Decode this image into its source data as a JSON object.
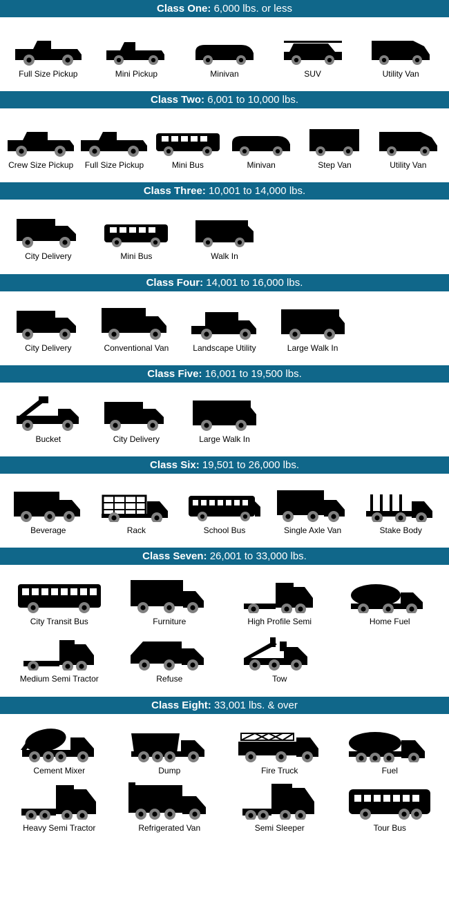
{
  "header_bg": "#10678a",
  "icon_fill": "#000000",
  "wheel_fill": "#808080",
  "label_fontsize": 12,
  "header_fontsize": 15,
  "sections": [
    {
      "title_bold": "Class One:",
      "title_rest": " 6,000 lbs. or less",
      "cols": 5,
      "items": [
        {
          "label": "Full Size Pickup",
          "icon": "pickup-full"
        },
        {
          "label": "Mini Pickup",
          "icon": "pickup-mini"
        },
        {
          "label": "Minivan",
          "icon": "minivan"
        },
        {
          "label": "SUV",
          "icon": "suv"
        },
        {
          "label": "Utility Van",
          "icon": "utility-van"
        }
      ]
    },
    {
      "title_bold": "Class Two:",
      "title_rest": " 6,001 to 10,000 lbs.",
      "cols": 6,
      "items": [
        {
          "label": "Crew Size Pickup",
          "icon": "pickup-crew"
        },
        {
          "label": "Full Size Pickup",
          "icon": "pickup-full"
        },
        {
          "label": "Mini Bus",
          "icon": "mini-bus"
        },
        {
          "label": "Minivan",
          "icon": "minivan"
        },
        {
          "label": "Step Van",
          "icon": "step-van"
        },
        {
          "label": "Utility Van",
          "icon": "utility-van"
        }
      ]
    },
    {
      "title_bold": "Class Three:",
      "title_rest": " 10,001 to 14,000 lbs.",
      "cols": 5,
      "items": [
        {
          "label": "City Delivery",
          "icon": "box-truck"
        },
        {
          "label": "Mini Bus",
          "icon": "mini-bus"
        },
        {
          "label": "Walk In",
          "icon": "walk-in"
        }
      ]
    },
    {
      "title_bold": "Class Four:",
      "title_rest": " 14,001 to 16,000 lbs.",
      "cols": 5,
      "items": [
        {
          "label": "City Delivery",
          "icon": "box-truck"
        },
        {
          "label": "Conventional Van",
          "icon": "box-truck-lg"
        },
        {
          "label": "Landscape Utility",
          "icon": "landscape"
        },
        {
          "label": "Large Walk In",
          "icon": "walk-in-lg"
        }
      ]
    },
    {
      "title_bold": "Class Five:",
      "title_rest": " 16,001 to 19,500 lbs.",
      "cols": 5,
      "items": [
        {
          "label": "Bucket",
          "icon": "bucket"
        },
        {
          "label": "City Delivery",
          "icon": "box-truck"
        },
        {
          "label": "Large Walk In",
          "icon": "walk-in-lg"
        }
      ]
    },
    {
      "title_bold": "Class Six:",
      "title_rest": " 19,501 to 26,000 lbs.",
      "cols": 5,
      "items": [
        {
          "label": "Beverage",
          "icon": "beverage"
        },
        {
          "label": "Rack",
          "icon": "rack"
        },
        {
          "label": "School Bus",
          "icon": "school-bus"
        },
        {
          "label": "Single Axle Van",
          "icon": "single-axle"
        },
        {
          "label": "Stake Body",
          "icon": "stake"
        }
      ]
    },
    {
      "title_bold": "Class Seven:",
      "title_rest": " 26,001 to 33,000 lbs.",
      "cols": 4,
      "items": [
        {
          "label": "City Transit Bus",
          "icon": "transit-bus"
        },
        {
          "label": "Furniture",
          "icon": "furniture"
        },
        {
          "label": "High Profile Semi",
          "icon": "high-semi"
        },
        {
          "label": "Home Fuel",
          "icon": "home-fuel"
        },
        {
          "label": "Medium Semi Tractor",
          "icon": "med-semi"
        },
        {
          "label": "Refuse",
          "icon": "refuse"
        },
        {
          "label": "Tow",
          "icon": "tow"
        }
      ]
    },
    {
      "title_bold": "Class Eight:",
      "title_rest": " 33,001 lbs. & over",
      "cols": 4,
      "items": [
        {
          "label": "Cement Mixer",
          "icon": "cement"
        },
        {
          "label": "Dump",
          "icon": "dump"
        },
        {
          "label": "Fire Truck",
          "icon": "fire"
        },
        {
          "label": "Fuel",
          "icon": "fuel"
        },
        {
          "label": "Heavy Semi Tractor",
          "icon": "heavy-semi"
        },
        {
          "label": "Refrigerated Van",
          "icon": "refrigerated"
        },
        {
          "label": "Semi Sleeper",
          "icon": "semi-sleeper"
        },
        {
          "label": "Tour Bus",
          "icon": "tour-bus"
        }
      ]
    }
  ]
}
